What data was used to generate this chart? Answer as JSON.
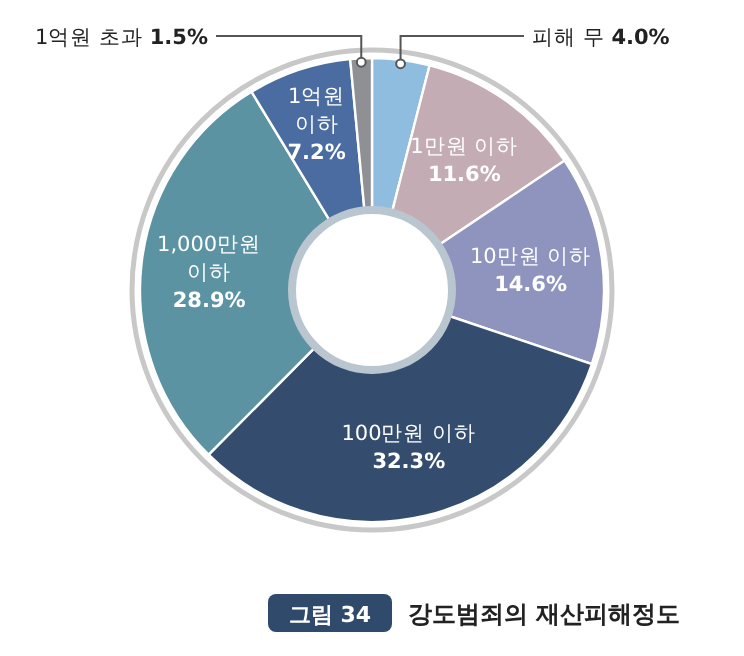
{
  "chart_data": {
    "type": "donut",
    "title": "강도범죄의 재산피해정도",
    "annotations": [
      "그림 34"
    ],
    "categories": [
      "피해 무",
      "1만원 이하",
      "10만원 이하",
      "100만원 이하",
      "1,000만원 이하",
      "1억원 이하",
      "1억원 초과"
    ],
    "values": [
      4.0,
      11.6,
      14.6,
      32.3,
      28.9,
      7.2,
      1.5
    ],
    "colors": [
      "#8fbde0",
      "#c4acb4",
      "#8e94bd",
      "#344d6e",
      "#5b93a3",
      "#4a6ca0",
      "#8f9094"
    ],
    "value_labels": [
      "4.0%",
      "11.6%",
      "14.6%",
      "32.3%",
      "28.9%",
      "7.2%",
      "1.5%"
    ]
  }
}
